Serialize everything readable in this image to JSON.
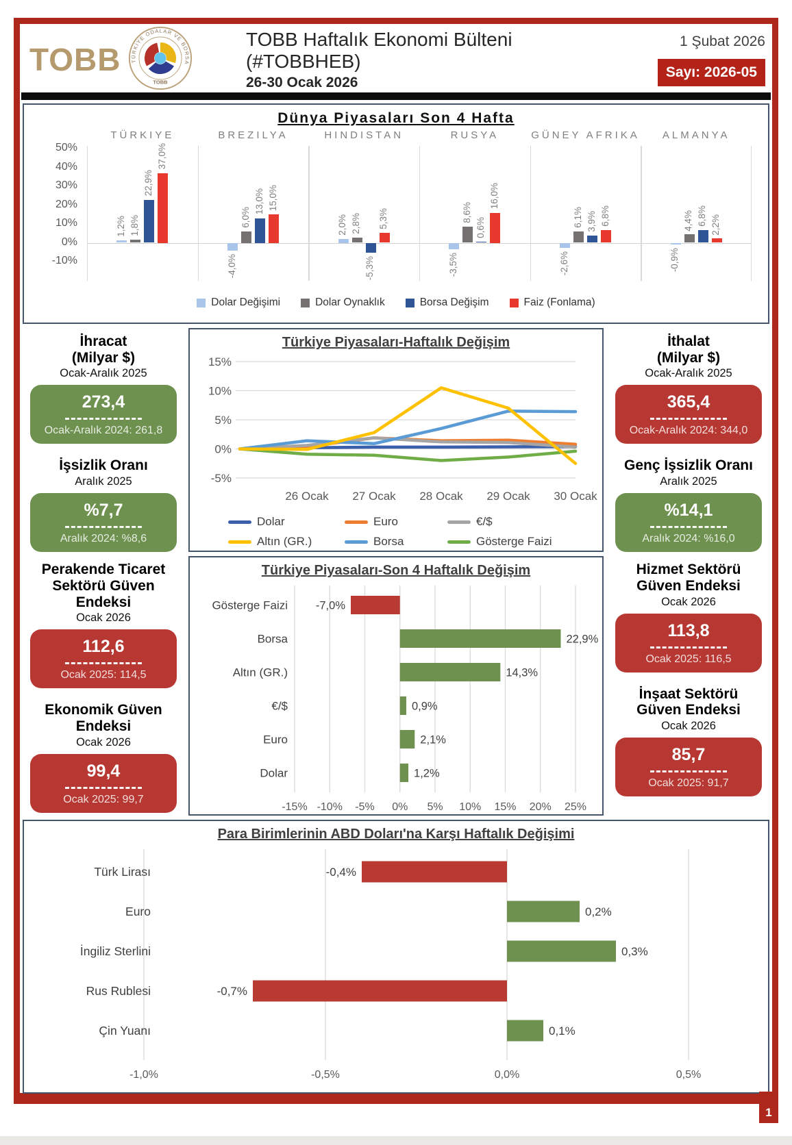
{
  "header": {
    "logo_text": "TOBB",
    "logo_ring_text": "TÜRKİYE ODALAR VE BORSALAR BİRLİĞİ",
    "logo_ring_bottom": "TOBB",
    "title": "TOBB Haftalık Ekonomi Bülteni (#TOBBHEB)",
    "subtitle": "26-30 Ocak 2026",
    "date": "1 Şubat 2026",
    "issue_badge": "Sayı: 2026-05"
  },
  "colors": {
    "frame_red": "#ad271b",
    "badge_red": "#b42318",
    "card_red": "#b73832",
    "card_green": "#6e9150",
    "box_border": "#44546a",
    "black_bar": "#0d0d0d"
  },
  "chart_data": [
    {
      "id": "world_markets",
      "type": "bar",
      "title": "Dünya Piyasaları Son 4 Hafta",
      "categories": [
        "TÜRKIYE",
        "BREZILYA",
        "HINDISTAN",
        "RUSYA",
        "GÜNEY AFRIKA",
        "ALMANYA"
      ],
      "series": [
        {
          "name": "Dolar Değişimi",
          "color": "#a9c6ea",
          "values": [
            1.2,
            -4.0,
            2.0,
            -3.5,
            -2.6,
            -0.9
          ]
        },
        {
          "name": "Dolar Oynaklık",
          "color": "#767171",
          "values": [
            1.8,
            6.0,
            2.8,
            8.6,
            6.1,
            4.4
          ]
        },
        {
          "name": "Borsa Değişim",
          "color": "#2f5597",
          "values": [
            22.9,
            13.0,
            -5.3,
            0.6,
            3.9,
            6.8
          ]
        },
        {
          "name": "Faiz (Fonlama)",
          "color": "#e8392e",
          "values": [
            37.0,
            15.0,
            5.3,
            16.0,
            6.8,
            2.2
          ]
        }
      ],
      "ylim": [
        -10,
        50
      ],
      "yticks": [
        50,
        40,
        30,
        20,
        10,
        0,
        -10
      ],
      "grid": "zero-line and group separators",
      "legend_position": "bottom"
    },
    {
      "id": "turkiye_weekly",
      "type": "line",
      "title": "Türkiye Piyasaları-Haftalık Değişim",
      "x": [
        "",
        "26 Ocak",
        "27 Ocak",
        "28 Ocak",
        "29 Ocak",
        "30 Ocak"
      ],
      "series": [
        {
          "name": "Dolar",
          "color": "#3a5fab",
          "values": [
            0,
            0.2,
            0.3,
            0.3,
            0.35,
            0.4
          ]
        },
        {
          "name": "Euro",
          "color": "#ed7d31",
          "values": [
            0,
            0.4,
            1.9,
            1.4,
            1.5,
            0.8
          ]
        },
        {
          "name": "€/$",
          "color": "#a5a5a5",
          "values": [
            0,
            0.6,
            1.9,
            1.2,
            1.1,
            0.3
          ]
        },
        {
          "name": "Altın (GR.)",
          "color": "#ffc000",
          "values": [
            0,
            -0.1,
            2.8,
            10.5,
            7.0,
            -2.5
          ]
        },
        {
          "name": "Borsa",
          "color": "#5b9bd5",
          "values": [
            0,
            1.4,
            0.9,
            3.5,
            6.5,
            6.4
          ]
        },
        {
          "name": "Gösterge Faizi",
          "color": "#70ad47",
          "values": [
            0,
            -0.9,
            -1.1,
            -2.0,
            -1.4,
            -0.4
          ]
        }
      ],
      "ylim": [
        -5,
        15
      ],
      "yticks": [
        15,
        10,
        5,
        0,
        -5
      ],
      "grid": "horizontal",
      "legend_position": "bottom"
    },
    {
      "id": "turkiye_4week",
      "type": "bar-horizontal",
      "title": "Türkiye Piyasaları-Son 4 Haftalık Değişim",
      "categories": [
        "Gösterge Faizi",
        "Borsa",
        "Altın (GR.)",
        "€/$",
        "Euro",
        "Dolar"
      ],
      "values": [
        -7.0,
        22.9,
        14.3,
        0.9,
        2.1,
        1.2
      ],
      "xlim": [
        -15,
        25
      ],
      "xticks": [
        -15,
        -10,
        -5,
        0,
        5,
        10,
        15,
        20,
        25
      ],
      "negative_color": "#b93a32",
      "positive_color": "#6e9150",
      "grid": "vertical"
    },
    {
      "id": "currencies_vs_usd",
      "type": "bar-horizontal",
      "title": "Para Birimlerinin ABD Doları'na Karşı Haftalık Değişimi",
      "categories": [
        "Türk Lirası",
        "Euro",
        "İngiliz Sterlini",
        "Rus Rublesi",
        "Çin Yuanı"
      ],
      "values": [
        -0.4,
        0.2,
        0.3,
        -0.7,
        0.1
      ],
      "xlim": [
        -1.25,
        0.68
      ],
      "xticks": [
        -1.0,
        -0.5,
        0.0,
        0.5
      ],
      "negative_color": "#b93a32",
      "positive_color": "#6e9150",
      "grid": "vertical"
    }
  ],
  "cards": {
    "left": [
      {
        "title": "İhracat\n(Milyar $)",
        "period": "Ocak-Aralık 2025",
        "value": "273,4",
        "prev": "Ocak-Aralık 2024: 261,8",
        "color": "green"
      },
      {
        "title": "İşsizlik Oranı",
        "period": "Aralık 2025",
        "value": "%7,7",
        "prev": "Aralık 2024: %8,6",
        "color": "green"
      },
      {
        "title": "Perakende Ticaret\nSektörü Güven Endeksi",
        "period": "Ocak 2026",
        "value": "112,6",
        "prev": "Ocak 2025: 114,5",
        "color": "red"
      },
      {
        "title": "Ekonomik Güven\nEndeksi",
        "period": "Ocak 2026",
        "value": "99,4",
        "prev": "Ocak 2025: 99,7",
        "color": "red"
      }
    ],
    "right": [
      {
        "title": "İthalat\n(Milyar $)",
        "period": "Ocak-Aralık 2025",
        "value": "365,4",
        "prev": "Ocak-Aralık 2024: 344,0",
        "color": "red"
      },
      {
        "title": "Genç İşsizlik Oranı",
        "period": "Aralık 2025",
        "value": "%14,1",
        "prev": "Aralık 2024: %16,0",
        "color": "green"
      },
      {
        "title": "Hizmet Sektörü\nGüven Endeksi",
        "period": "Ocak 2026",
        "value": "113,8",
        "prev": "Ocak 2025: 116,5",
        "color": "red"
      },
      {
        "title": "İnşaat Sektörü\nGüven Endeksi",
        "period": "Ocak 2026",
        "value": "85,7",
        "prev": "Ocak 2025: 91,7",
        "color": "red"
      }
    ]
  },
  "footer": {
    "page_number": "1"
  }
}
